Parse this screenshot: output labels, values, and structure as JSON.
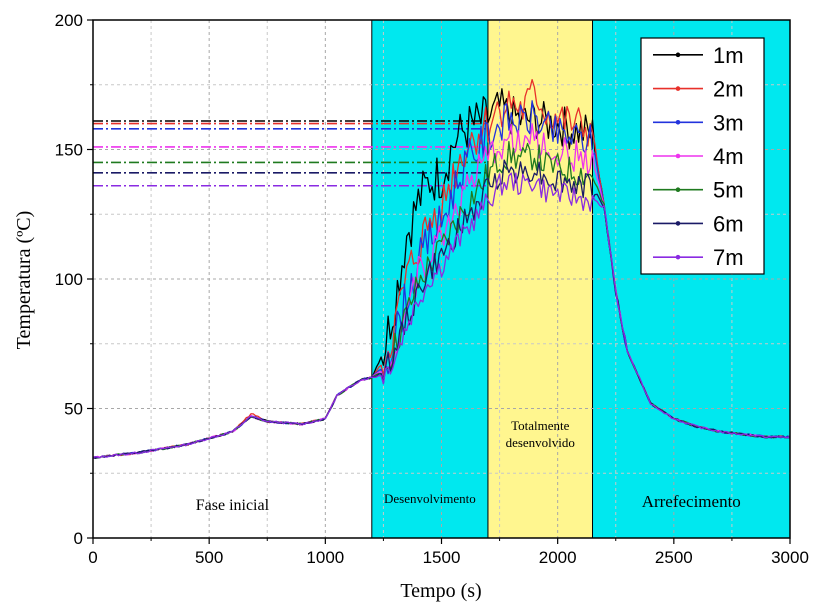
{
  "chart_data": {
    "type": "line",
    "xlabel": "Tempo (s)",
    "ylabel": "Temperatura (ºC)",
    "xlim": [
      0,
      3000
    ],
    "ylim": [
      0,
      200
    ],
    "xticks": [
      0,
      500,
      1000,
      1500,
      2000,
      2500,
      3000
    ],
    "yticks": [
      0,
      50,
      100,
      150,
      200
    ],
    "grid": true,
    "legend_position": "top-right",
    "phases": [
      {
        "label": "Fase inicial",
        "x_start": 0,
        "x_end": 1200,
        "color": "#ffffff"
      },
      {
        "label": "Desenvolvimento",
        "x_start": 1200,
        "x_end": 1700,
        "color": "#00e8ef"
      },
      {
        "label": "Totalmente desenvolvido",
        "label_lines": [
          "Totalmente",
          "desenvolvido"
        ],
        "x_start": 1700,
        "x_end": 2150,
        "color": "#fff68f"
      },
      {
        "label": "Arrefecimento",
        "x_start": 2150,
        "x_end": 3000,
        "color": "#00e8ef"
      }
    ],
    "reference_lines": [
      {
        "series": "1m",
        "y": 161,
        "x_end": 1700
      },
      {
        "series": "2m",
        "y": 160,
        "x_end": 1700
      },
      {
        "series": "3m",
        "y": 158,
        "x_end": 1700
      },
      {
        "series": "4m",
        "y": 151,
        "x_end": 1700
      },
      {
        "series": "5m",
        "y": 145,
        "x_end": 1700
      },
      {
        "series": "6m",
        "y": 141,
        "x_end": 1700
      },
      {
        "series": "7m",
        "y": 136,
        "x_end": 1700
      }
    ],
    "series": [
      {
        "name": "1m",
        "color": "#000000",
        "x": [
          0,
          200,
          400,
          600,
          680,
          750,
          900,
          1000,
          1050,
          1150,
          1200,
          1250,
          1300,
          1350,
          1400,
          1450,
          1500,
          1550,
          1600,
          1650,
          1700,
          1750,
          1800,
          1850,
          1900,
          1950,
          2000,
          2050,
          2100,
          2150,
          2200,
          2250,
          2300,
          2400,
          2500,
          2600,
          2700,
          2800,
          2900,
          3000
        ],
        "y": [
          31,
          33,
          36,
          41,
          47,
          45,
          44,
          46,
          55,
          61,
          62,
          72,
          92,
          117,
          130,
          138,
          140,
          152,
          158,
          160,
          162,
          166,
          163,
          161,
          162,
          160,
          160,
          158,
          157,
          156,
          128,
          95,
          72,
          52,
          46,
          43,
          41,
          40,
          39,
          39
        ]
      },
      {
        "name": "2m",
        "color": "#e8302a",
        "x": [
          0,
          200,
          400,
          600,
          680,
          750,
          900,
          1000,
          1050,
          1150,
          1200,
          1250,
          1300,
          1350,
          1400,
          1450,
          1500,
          1550,
          1600,
          1650,
          1700,
          1750,
          1800,
          1850,
          1900,
          1950,
          2000,
          2050,
          2100,
          2150,
          2200,
          2250,
          2300,
          2400,
          2500,
          2600,
          2700,
          2800,
          2900,
          3000
        ],
        "y": [
          31,
          33,
          36,
          41,
          48,
          45,
          44,
          46,
          55,
          61,
          62,
          68,
          82,
          100,
          112,
          122,
          128,
          140,
          150,
          156,
          160,
          166,
          168,
          165,
          172,
          164,
          162,
          160,
          159,
          157,
          128,
          95,
          72,
          52,
          46,
          43,
          41,
          40,
          39,
          39
        ]
      },
      {
        "name": "3m",
        "color": "#2233dd",
        "x": [
          0,
          200,
          400,
          600,
          680,
          750,
          900,
          1000,
          1050,
          1150,
          1200,
          1250,
          1300,
          1350,
          1400,
          1450,
          1500,
          1550,
          1600,
          1650,
          1700,
          1750,
          1800,
          1850,
          1900,
          1950,
          2000,
          2050,
          2100,
          2150,
          2200,
          2250,
          2300,
          2400,
          2500,
          2600,
          2700,
          2800,
          2900,
          3000
        ],
        "y": [
          31,
          33,
          36,
          41,
          47,
          45,
          44,
          46,
          55,
          61,
          62,
          66,
          78,
          94,
          106,
          116,
          122,
          134,
          144,
          150,
          155,
          160,
          162,
          160,
          163,
          158,
          156,
          155,
          154,
          153,
          128,
          95,
          72,
          52,
          46,
          43,
          41,
          40,
          39,
          39
        ]
      },
      {
        "name": "4m",
        "color": "#ee33ee",
        "x": [
          0,
          200,
          400,
          600,
          680,
          750,
          900,
          1000,
          1050,
          1150,
          1200,
          1250,
          1300,
          1350,
          1400,
          1450,
          1500,
          1550,
          1600,
          1650,
          1700,
          1750,
          1800,
          1850,
          1900,
          1950,
          2000,
          2050,
          2100,
          2150,
          2200,
          2250,
          2300,
          2400,
          2500,
          2600,
          2700,
          2800,
          2900,
          3000
        ],
        "y": [
          31,
          33,
          36,
          41,
          47,
          45,
          44,
          46,
          55,
          61,
          62,
          65,
          76,
          90,
          102,
          110,
          116,
          126,
          134,
          140,
          146,
          152,
          154,
          152,
          154,
          150,
          149,
          148,
          147,
          146,
          128,
          95,
          72,
          52,
          46,
          43,
          41,
          40,
          39,
          39
        ]
      },
      {
        "name": "5m",
        "color": "#1f7a1f",
        "x": [
          0,
          200,
          400,
          600,
          680,
          750,
          900,
          1000,
          1050,
          1150,
          1200,
          1250,
          1300,
          1350,
          1400,
          1450,
          1500,
          1550,
          1600,
          1650,
          1700,
          1750,
          1800,
          1850,
          1900,
          1950,
          2000,
          2050,
          2100,
          2150,
          2200,
          2250,
          2300,
          2400,
          2500,
          2600,
          2700,
          2800,
          2900,
          3000
        ],
        "y": [
          31,
          33,
          36,
          41,
          47,
          45,
          44,
          46,
          55,
          61,
          62,
          64,
          74,
          87,
          98,
          106,
          112,
          120,
          128,
          134,
          140,
          146,
          148,
          146,
          148,
          144,
          143,
          142,
          141,
          140,
          128,
          95,
          72,
          52,
          46,
          43,
          41,
          40,
          39,
          39
        ]
      },
      {
        "name": "6m",
        "color": "#1a1a66",
        "x": [
          0,
          200,
          400,
          600,
          680,
          750,
          900,
          1000,
          1050,
          1150,
          1200,
          1250,
          1300,
          1350,
          1400,
          1450,
          1500,
          1550,
          1600,
          1650,
          1700,
          1750,
          1800,
          1850,
          1900,
          1950,
          2000,
          2050,
          2100,
          2150,
          2200,
          2250,
          2300,
          2400,
          2500,
          2600,
          2700,
          2800,
          2900,
          3000
        ],
        "y": [
          31,
          33,
          36,
          41,
          47,
          45,
          44,
          46,
          55,
          61,
          62,
          64,
          72,
          84,
          95,
          103,
          108,
          116,
          122,
          128,
          135,
          141,
          143,
          141,
          143,
          139,
          138,
          137,
          136,
          135,
          128,
          95,
          72,
          52,
          46,
          43,
          41,
          40,
          39,
          39
        ]
      },
      {
        "name": "7m",
        "color": "#8a2be2",
        "x": [
          0,
          200,
          400,
          600,
          680,
          750,
          900,
          1000,
          1050,
          1150,
          1200,
          1250,
          1300,
          1350,
          1400,
          1450,
          1500,
          1550,
          1600,
          1650,
          1700,
          1750,
          1800,
          1850,
          1900,
          1950,
          2000,
          2050,
          2100,
          2150,
          2200,
          2250,
          2300,
          2400,
          2500,
          2600,
          2700,
          2800,
          2900,
          3000
        ],
        "y": [
          31,
          33,
          36,
          41,
          47,
          45,
          44,
          46,
          55,
          61,
          62,
          63,
          70,
          82,
          92,
          100,
          105,
          112,
          118,
          124,
          130,
          136,
          138,
          136,
          138,
          134,
          133,
          132,
          131,
          130,
          128,
          95,
          72,
          52,
          46,
          43,
          41,
          40,
          39,
          39
        ]
      }
    ]
  }
}
